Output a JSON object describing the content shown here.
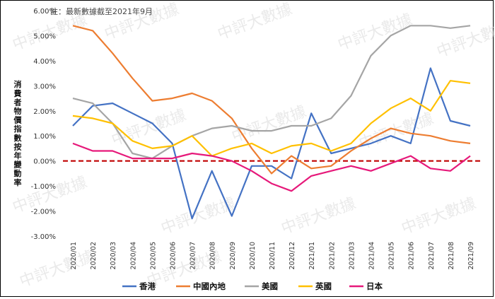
{
  "chart_data": {
    "type": "line",
    "note": "註：最新數據截至2021年9月",
    "ylabel": "消費者物價指數按年變動率",
    "watermark": "中評大數據",
    "ylim": [
      -3,
      6
    ],
    "yticks": [
      "-3.00%",
      "-2.00%",
      "-1.00%",
      "0.00%",
      "1.00%",
      "2.00%",
      "3.00%",
      "4.00%",
      "5.00%",
      "6.00%"
    ],
    "categories": [
      "2020/01",
      "2020/02",
      "2020/03",
      "2020/04",
      "2020/05",
      "2020/06",
      "2020/07",
      "2020/08",
      "2020/09",
      "2020/10",
      "2020/11",
      "2020/12",
      "2021/01",
      "2021/02",
      "2021/03",
      "2021/04",
      "2021/05",
      "2021/06",
      "2021/07",
      "2021/08",
      "2021/09"
    ],
    "reference_line": {
      "y": 0,
      "color": "#c00000"
    },
    "series": [
      {
        "name": "香港",
        "color": "#4472c4",
        "values": [
          1.4,
          2.2,
          2.3,
          1.9,
          1.5,
          0.7,
          -2.3,
          -0.4,
          -2.2,
          -0.2,
          -0.2,
          -0.7,
          1.9,
          0.3,
          0.5,
          0.7,
          1.0,
          0.7,
          3.7,
          1.6,
          1.4
        ]
      },
      {
        "name": "中國內地",
        "color": "#ed7d31",
        "values": [
          5.4,
          5.2,
          4.3,
          3.3,
          2.4,
          2.5,
          2.7,
          2.4,
          1.7,
          0.5,
          -0.5,
          0.2,
          -0.3,
          -0.2,
          0.4,
          0.9,
          1.3,
          1.1,
          1.0,
          0.8,
          0.7
        ]
      },
      {
        "name": "美國",
        "color": "#a5a5a5",
        "values": [
          2.5,
          2.3,
          1.5,
          0.3,
          0.1,
          0.6,
          1.0,
          1.3,
          1.4,
          1.2,
          1.2,
          1.4,
          1.4,
          1.7,
          2.6,
          4.2,
          5.0,
          5.4,
          5.4,
          5.3,
          5.4
        ]
      },
      {
        "name": "英國",
        "color": "#ffc000",
        "values": [
          1.8,
          1.7,
          1.5,
          0.8,
          0.5,
          0.6,
          1.0,
          0.2,
          0.5,
          0.7,
          0.3,
          0.6,
          0.7,
          0.4,
          0.7,
          1.5,
          2.1,
          2.5,
          2.0,
          3.2,
          3.1
        ]
      },
      {
        "name": "日本",
        "color": "#e6197a",
        "values": [
          0.7,
          0.4,
          0.4,
          0.1,
          0.1,
          0.1,
          0.3,
          0.2,
          0.0,
          -0.4,
          -0.9,
          -1.2,
          -0.6,
          -0.4,
          -0.2,
          -0.4,
          -0.1,
          0.2,
          -0.3,
          -0.4,
          0.2
        ]
      }
    ]
  }
}
